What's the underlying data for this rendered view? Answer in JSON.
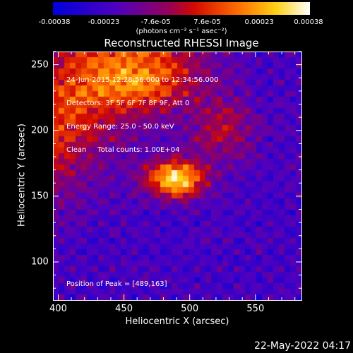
{
  "colorbar": {
    "ticks": [
      "-0.00038",
      "-0.00023",
      "-7.6e-05",
      "7.6e-05",
      "0.00023",
      "0.00038"
    ],
    "tick_values": [
      -0.00038,
      -0.00023,
      -7.6e-05,
      7.6e-05,
      0.00023,
      0.00038
    ],
    "unit": "(photons cm⁻² s⁻¹ asec⁻²)",
    "range": [
      -0.00038,
      0.00038
    ]
  },
  "chart_data": {
    "type": "heatmap",
    "title": "Reconstructed RHESSI Image",
    "xlabel": "Heliocentric X (arcsec)",
    "ylabel": "Heliocentric Y (arcsec)",
    "xlim": [
      396,
      585
    ],
    "ylim": [
      71,
      260
    ],
    "xticks": [
      400,
      450,
      500,
      550
    ],
    "yticks": [
      100,
      150,
      200,
      250
    ],
    "peak": [
      489,
      163
    ],
    "colormap": "rhessi-blue-purple-red-yellow-white"
  },
  "annotations": [
    "24-Jun-2015 12:28:56.000 to 12:34:56.000",
    "Detectors: 3F 5F 6F 7F 8F 9F, Att 0",
    "Energy Range: 25.0 - 50.0 keV",
    "Clean     Total counts: 1.00E+04"
  ],
  "peak_label": "Position of Peak = [489,163]",
  "plot_date": "22-May-2022 04:17"
}
